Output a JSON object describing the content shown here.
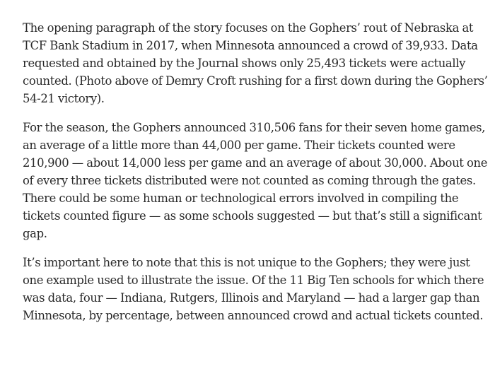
{
  "article": {
    "paragraphs": [
      "The opening paragraph of the story focuses on the Gophers’ rout of Nebraska at TCF Bank Stadium in 2017, when Minnesota announced a crowd of 39,933. Data requested and obtained by the Journal shows only 25,493 tickets were actually counted. (Photo above of Demry Croft rushing for a first down during the Gophers’ 54-21 victory).",
      "For the season, the Gophers announced 310,506 fans for their seven home games, an average of a little more than 44,000 per game. Their tickets counted were 210,900 — about 14,000 less per game and an average of about 30,000. About one of every three tickets distributed were not counted as coming through the gates. There could be some human or technological errors involved in compiling the tickets counted figure — as some schools suggested — but that’s still a significant gap.",
      "It’s important here to note that this is not unique to the Gophers; they were just one example used to illustrate the issue. Of the 11 Big Ten schools for which there was data, four — Indiana, Rutgers, Illinois and Maryland — had a larger gap than Minnesota, by percentage, between announced crowd and actual tickets counted."
    ]
  }
}
